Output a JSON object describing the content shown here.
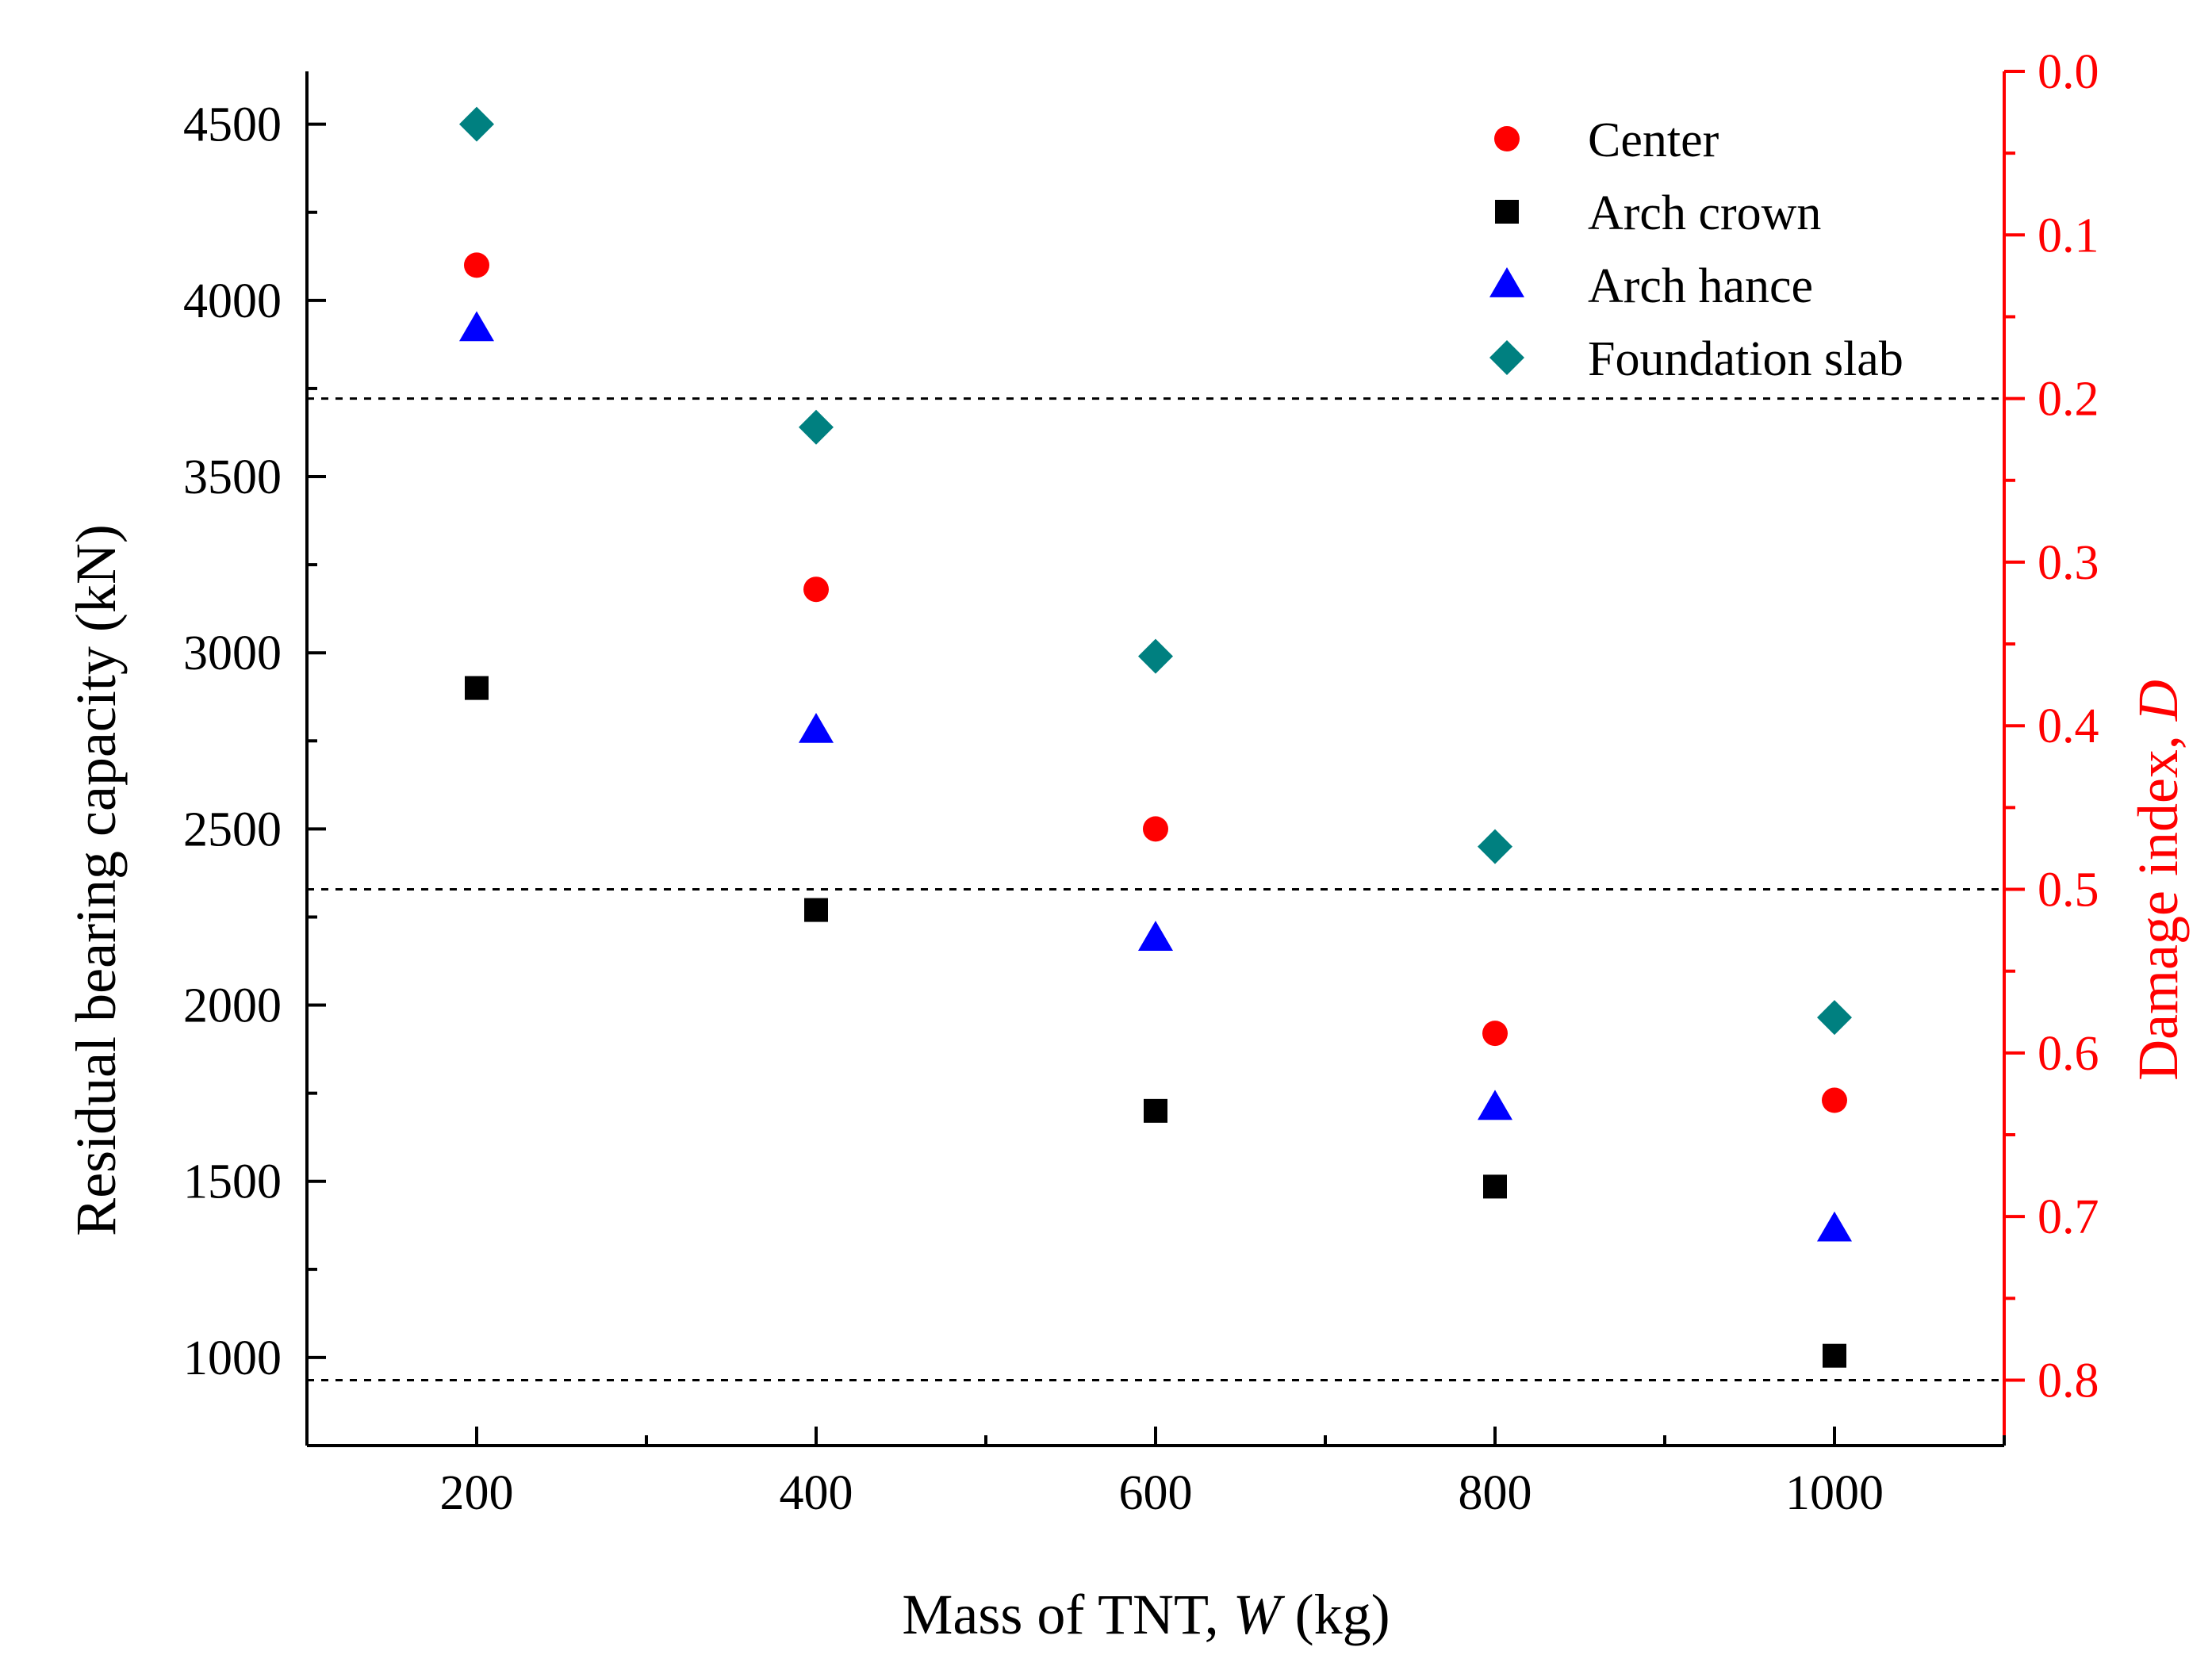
{
  "chart_data": {
    "type": "scatter",
    "xlabel": "Mass of TNT, ",
    "xlabel_var": "W",
    "xlabel_unit": " (kg)",
    "ylabel": "Residual bearing capacity (kN)",
    "y2label": "Damage index, ",
    "y2label_var": "D",
    "xlim": [
      100,
      1100
    ],
    "ylim": [
      750,
      4650
    ],
    "y2lim": [
      0.0,
      0.84
    ],
    "y2_inverted": true,
    "x_ticks": [
      200,
      400,
      600,
      800,
      1000
    ],
    "x_tick_labels": [
      "200",
      "400",
      "600",
      "800",
      "1000"
    ],
    "x_minor_ticks": [
      100,
      300,
      500,
      700,
      900,
      1100
    ],
    "y_ticks": [
      1000,
      1500,
      2000,
      2500,
      3000,
      3500,
      4000,
      4500
    ],
    "y_tick_labels": [
      "1000",
      "1500",
      "2000",
      "2500",
      "3000",
      "3500",
      "4000",
      "4500"
    ],
    "y_minor_ticks": [
      750,
      1250,
      1750,
      2250,
      2750,
      3250,
      3750,
      4250
    ],
    "y2_ticks": [
      0.0,
      0.1,
      0.2,
      0.3,
      0.4,
      0.5,
      0.6,
      0.7,
      0.8
    ],
    "y2_tick_labels": [
      "0.0",
      "0.1",
      "0.2",
      "0.3",
      "0.4",
      "0.5",
      "0.6",
      "0.7",
      "0.8"
    ],
    "y2_minor_ticks": [
      0.05,
      0.15,
      0.25,
      0.35,
      0.45,
      0.55,
      0.65,
      0.75
    ],
    "reference_lines_y2": [
      0.2,
      0.5,
      0.8
    ],
    "grid": false,
    "legend_position": "top-right",
    "axis_color_right": "#ff0000",
    "series": [
      {
        "name": "Center",
        "marker": "circle",
        "color": "#ff0000",
        "x": [
          200,
          400,
          600,
          800,
          1000
        ],
        "y": [
          4100,
          3180,
          2500,
          1920,
          1730
        ]
      },
      {
        "name": "Arch crown",
        "marker": "square",
        "color": "#000000",
        "x": [
          200,
          400,
          600,
          800,
          1000
        ],
        "y": [
          2900,
          2270,
          1700,
          1485,
          1005
        ]
      },
      {
        "name": "Arch hance",
        "marker": "triangle",
        "color": "#0000ff",
        "x": [
          200,
          400,
          600,
          800,
          1000
        ],
        "y": [
          3920,
          2780,
          2190,
          1710,
          1365
        ]
      },
      {
        "name": "Foundation slab",
        "marker": "diamond",
        "color": "#008080",
        "x": [
          200,
          400,
          600,
          800,
          1000
        ],
        "y": [
          4500,
          3640,
          2990,
          2450,
          1965
        ]
      }
    ]
  }
}
